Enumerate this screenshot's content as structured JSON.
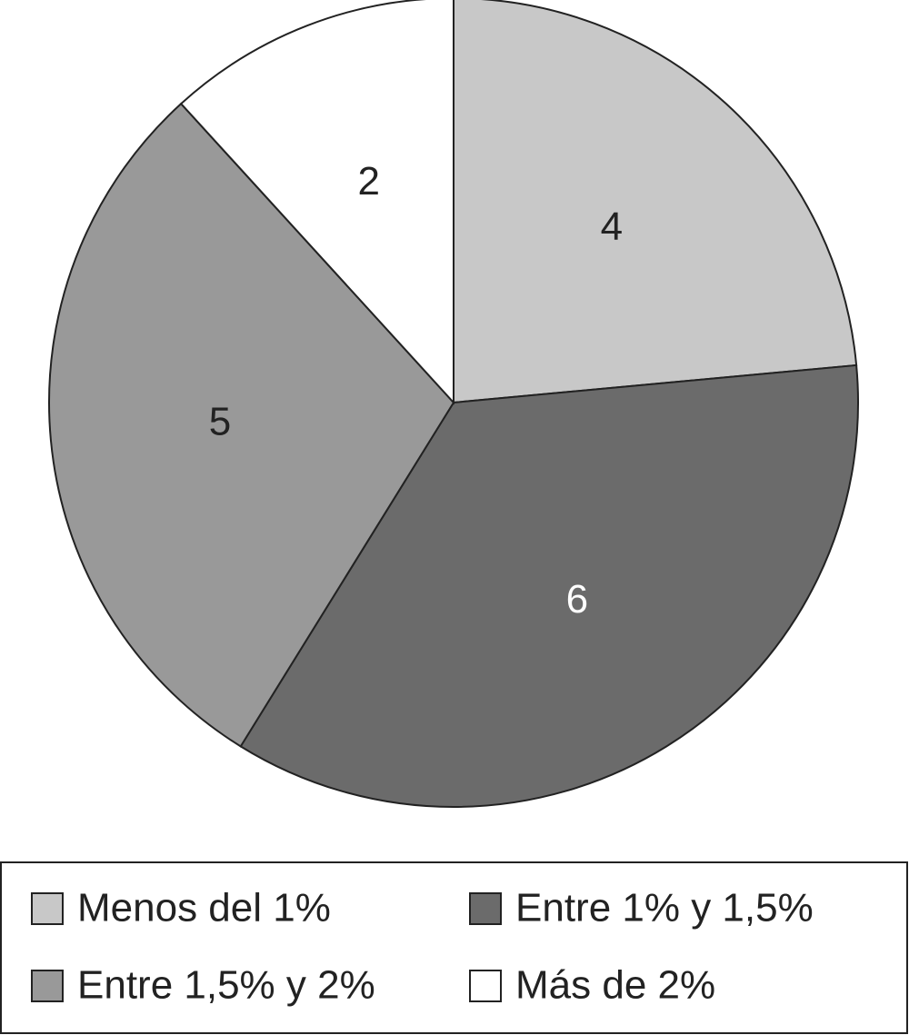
{
  "chart_data": {
    "type": "pie",
    "categories": [
      "Menos del 1%",
      "Entre 1% y 1,5%",
      "Entre 1,5% y 2%",
      "Más de 2%"
    ],
    "values": [
      4,
      6,
      5,
      2
    ],
    "colors": [
      "#c8c8c8",
      "#6b6b6b",
      "#999999",
      "#ffffff"
    ],
    "legend": "bottom"
  }
}
